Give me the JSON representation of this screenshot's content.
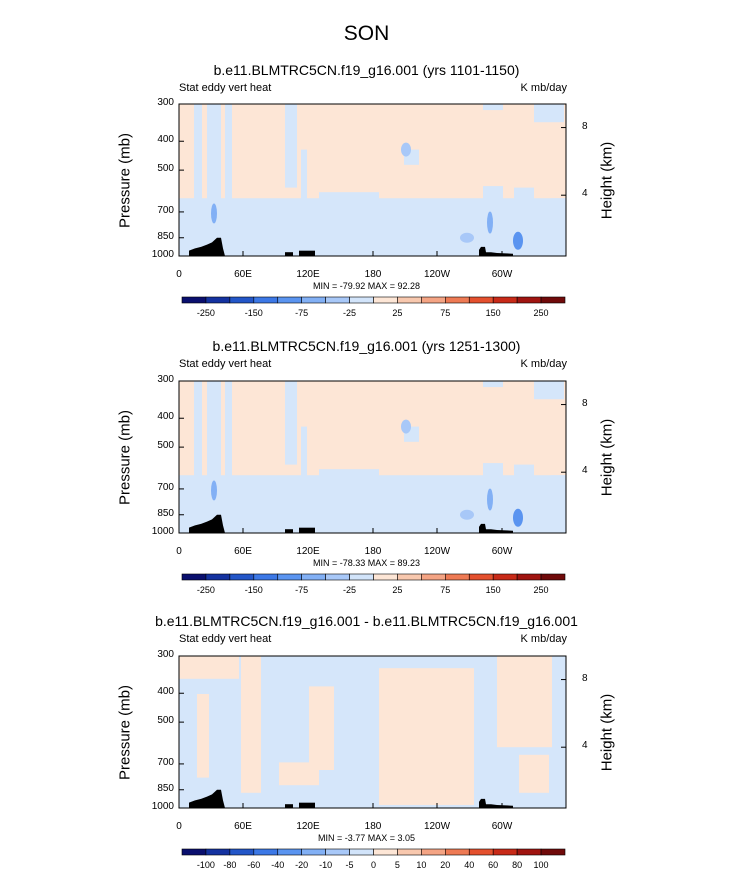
{
  "title": "SON",
  "chart_data": [
    {
      "type": "heatmap",
      "title": "b.e11.BLMTRC5CN.f19_g16.001 (yrs 1101-1150)",
      "left_string": "Stat eddy vert heat",
      "right_string": "K mb/day",
      "ylabel": "Pressure (mb)",
      "ylabel_right": "Height (km)",
      "x_ticks": [
        "0",
        "60E",
        "120E",
        "180",
        "120W",
        "60W"
      ],
      "y_ticks": [
        "300",
        "400",
        "500",
        "700",
        "850",
        "1000"
      ],
      "height_ticks": [
        "8",
        "4"
      ],
      "minmax": "MIN = -79.92  MAX = 92.28",
      "colorbar_labels": [
        "-250",
        "-150",
        "-75",
        "-25",
        "25",
        "75",
        "150",
        "250"
      ]
    },
    {
      "type": "heatmap",
      "title": "b.e11.BLMTRC5CN.f19_g16.001 (yrs 1251-1300)",
      "left_string": "Stat eddy vert heat",
      "right_string": "K mb/day",
      "ylabel": "Pressure (mb)",
      "ylabel_right": "Height (km)",
      "x_ticks": [
        "0",
        "60E",
        "120E",
        "180",
        "120W",
        "60W"
      ],
      "y_ticks": [
        "300",
        "400",
        "500",
        "700",
        "850",
        "1000"
      ],
      "height_ticks": [
        "8",
        "4"
      ],
      "minmax": "MIN = -78.33  MAX = 89.23",
      "colorbar_labels": [
        "-250",
        "-150",
        "-75",
        "-25",
        "25",
        "75",
        "150",
        "250"
      ]
    },
    {
      "type": "heatmap",
      "title": "b.e11.BLMTRC5CN.f19_g16.001 - b.e11.BLMTRC5CN.f19_g16.001",
      "left_string": "Stat eddy vert heat",
      "right_string": "K mb/day",
      "ylabel": "Pressure (mb)",
      "ylabel_right": "Height (km)",
      "x_ticks": [
        "0",
        "60E",
        "120E",
        "180",
        "120W",
        "60W"
      ],
      "y_ticks": [
        "300",
        "400",
        "500",
        "700",
        "850",
        "1000"
      ],
      "height_ticks": [
        "8",
        "4"
      ],
      "minmax": "MIN = -3.77  MAX = 3.05",
      "colorbar_labels": [
        "-100",
        "-80",
        "-60",
        "-40",
        "-20",
        "-10",
        "-5",
        "0",
        "5",
        "10",
        "20",
        "40",
        "60",
        "80",
        "100"
      ]
    }
  ],
  "colors": {
    "positive_weak": "#fde6d6",
    "negative_weak": "#d5e6fa",
    "topography": "#000000",
    "colorbar": [
      "#0a0f6e",
      "#1432a0",
      "#2356c8",
      "#3c78e6",
      "#5a94f0",
      "#82b0f5",
      "#a8c8f8",
      "#d2e4fa",
      "#fde6d6",
      "#f8c8ae",
      "#f4a484",
      "#ee7a54",
      "#e4502e",
      "#c82a18",
      "#a01410",
      "#700a0a"
    ]
  }
}
